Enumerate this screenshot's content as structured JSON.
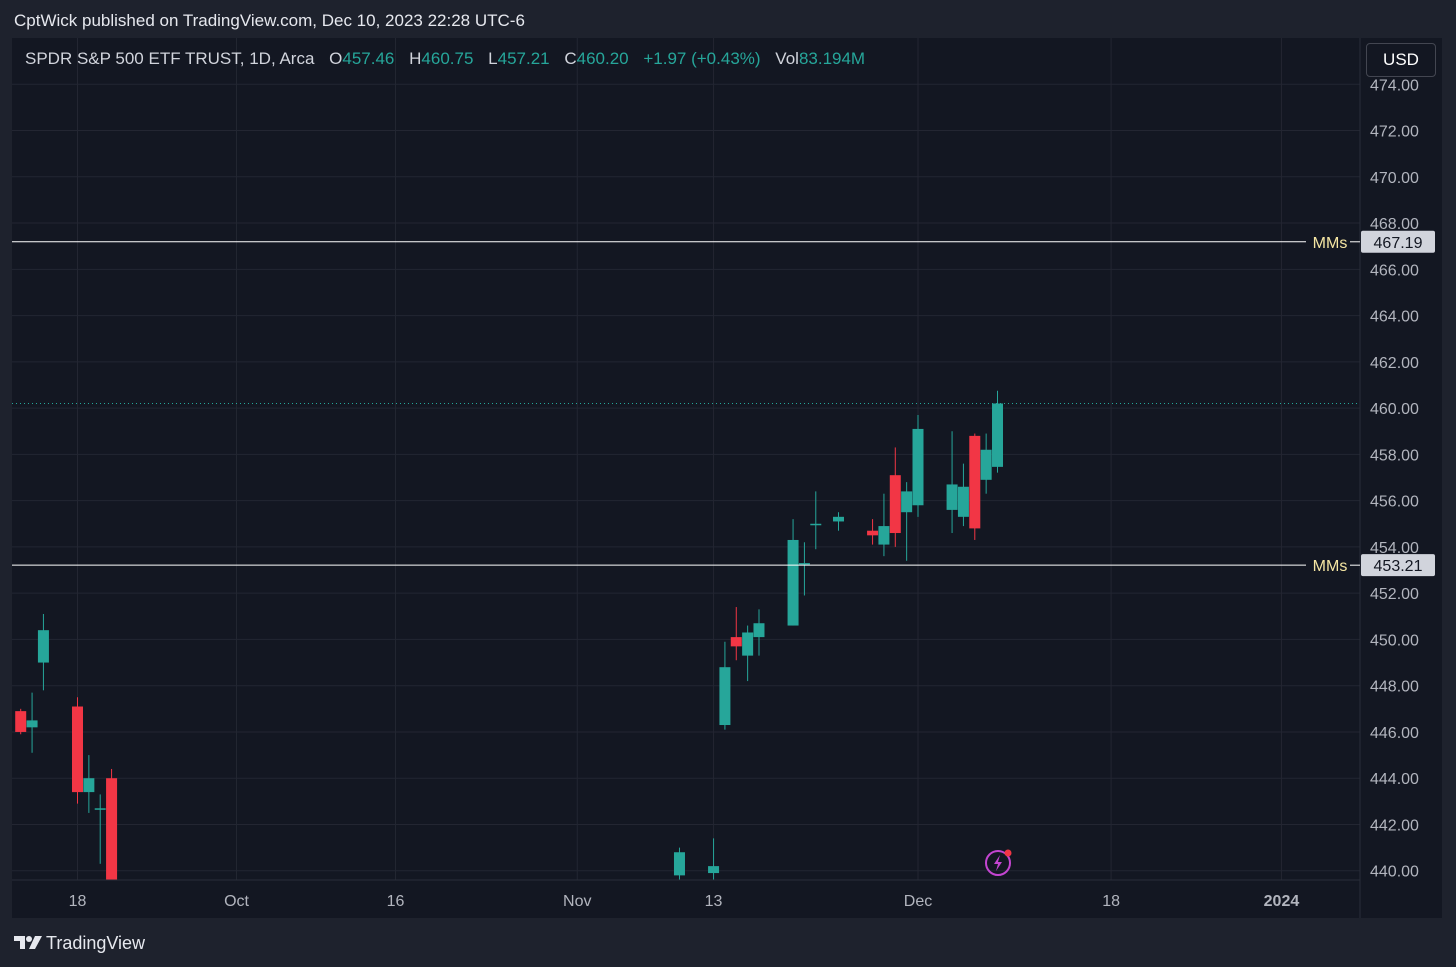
{
  "header": {
    "published": "CptWick published on TradingView.com, Dec 10, 2023 22:28 UTC-6"
  },
  "legend": {
    "symbol": "SPDR S&P 500 ETF TRUST, 1D, Arca",
    "o_label": "O",
    "o_value": "457.46",
    "h_label": "H",
    "h_value": "460.75",
    "l_label": "L",
    "l_value": "457.21",
    "c_label": "C",
    "c_value": "460.20",
    "change": "+1.97 (+0.43%)",
    "vol_label": "Vol",
    "vol_value": "83.194M"
  },
  "currency_button": "USD",
  "footer": {
    "brand": "TradingView"
  },
  "colors": {
    "up": "#26a69a",
    "down": "#f23645",
    "background": "#131722",
    "grid": "#232632",
    "level_line": "#ffffff",
    "level_label": "#f5e6a3"
  },
  "icons": {
    "logo": "tradingview-logo-icon",
    "alert": "lightning-alert-icon"
  },
  "chart_data": {
    "type": "candlestick",
    "title": "SPDR S&P 500 ETF TRUST, 1D, Arca",
    "ylim": [
      439.6,
      476.0
    ],
    "y_ticks": [
      "440.00",
      "442.00",
      "444.00",
      "446.00",
      "448.00",
      "450.00",
      "452.00",
      "454.00",
      "456.00",
      "458.00",
      "460.00",
      "462.00",
      "464.00",
      "466.00",
      "468.00",
      "470.00",
      "472.00",
      "474.00"
    ],
    "x_ticks": [
      "18",
      "Oct",
      "16",
      "Nov",
      "13",
      "Dec",
      "18",
      "2024"
    ],
    "x_tick_dates": [
      "2023-09-18",
      "2023-10-02",
      "2023-10-16",
      "2023-11-01",
      "2023-11-13",
      "2023-12-01",
      "2023-12-18",
      "2024-01-02"
    ],
    "grid": true,
    "last_price": 460.2,
    "levels": [
      {
        "label": "MMs",
        "value": "467.19"
      },
      {
        "label": "MMs",
        "value": "453.21"
      }
    ],
    "candles": [
      {
        "date": "2023-09-13",
        "o": 446.9,
        "h": 447.0,
        "l": 445.9,
        "c": 446.0
      },
      {
        "date": "2023-09-14",
        "o": 446.2,
        "h": 447.7,
        "l": 445.1,
        "c": 446.5
      },
      {
        "date": "2023-09-15",
        "o": 449.0,
        "h": 451.1,
        "l": 447.8,
        "c": 450.4
      },
      {
        "date": "2023-09-18",
        "o": 447.1,
        "h": 447.5,
        "l": 442.9,
        "c": 443.4
      },
      {
        "date": "2023-09-19",
        "o": 443.4,
        "h": 445.0,
        "l": 442.5,
        "c": 444.0
      },
      {
        "date": "2023-09-20",
        "o": 442.7,
        "h": 443.3,
        "l": 440.3,
        "c": 442.7
      },
      {
        "date": "2023-09-21",
        "o": 444.0,
        "h": 444.4,
        "l": 439.0,
        "c": 439.0
      },
      {
        "date": "2023-11-10",
        "o": 439.8,
        "h": 441.0,
        "l": 439.0,
        "c": 440.8
      },
      {
        "date": "2023-11-13",
        "o": 439.9,
        "h": 441.4,
        "l": 439.0,
        "c": 440.2
      },
      {
        "date": "2023-11-14",
        "o": 446.3,
        "h": 449.9,
        "l": 446.1,
        "c": 448.8
      },
      {
        "date": "2023-11-15",
        "o": 450.1,
        "h": 451.4,
        "l": 449.1,
        "c": 449.7
      },
      {
        "date": "2023-11-16",
        "o": 449.3,
        "h": 450.6,
        "l": 448.2,
        "c": 450.3
      },
      {
        "date": "2023-11-17",
        "o": 450.1,
        "h": 451.3,
        "l": 449.3,
        "c": 450.7
      },
      {
        "date": "2023-11-20",
        "o": 450.6,
        "h": 455.2,
        "l": 450.6,
        "c": 454.3
      },
      {
        "date": "2023-11-21",
        "o": 453.3,
        "h": 454.2,
        "l": 451.9,
        "c": 453.3
      },
      {
        "date": "2023-11-22",
        "o": 455.0,
        "h": 456.4,
        "l": 453.9,
        "c": 455.0
      },
      {
        "date": "2023-11-24",
        "o": 455.1,
        "h": 455.5,
        "l": 454.7,
        "c": 455.3
      },
      {
        "date": "2023-11-27",
        "o": 454.7,
        "h": 455.2,
        "l": 454.1,
        "c": 454.5
      },
      {
        "date": "2023-11-28",
        "o": 454.1,
        "h": 456.3,
        "l": 453.6,
        "c": 454.9
      },
      {
        "date": "2023-11-29",
        "o": 457.1,
        "h": 458.3,
        "l": 454.0,
        "c": 454.6
      },
      {
        "date": "2023-11-30",
        "o": 455.5,
        "h": 456.8,
        "l": 453.4,
        "c": 456.4
      },
      {
        "date": "2023-12-01",
        "o": 455.8,
        "h": 459.7,
        "l": 455.3,
        "c": 459.1
      },
      {
        "date": "2023-12-04",
        "o": 455.6,
        "h": 459.0,
        "l": 454.6,
        "c": 456.7
      },
      {
        "date": "2023-12-05",
        "o": 455.3,
        "h": 457.6,
        "l": 454.9,
        "c": 456.6
      },
      {
        "date": "2023-12-06",
        "o": 458.8,
        "h": 458.9,
        "l": 454.3,
        "c": 454.8
      },
      {
        "date": "2023-12-07",
        "o": 456.9,
        "h": 458.9,
        "l": 456.3,
        "c": 458.2
      },
      {
        "date": "2023-12-08",
        "o": 457.46,
        "h": 460.75,
        "l": 457.21,
        "c": 460.2
      }
    ]
  }
}
